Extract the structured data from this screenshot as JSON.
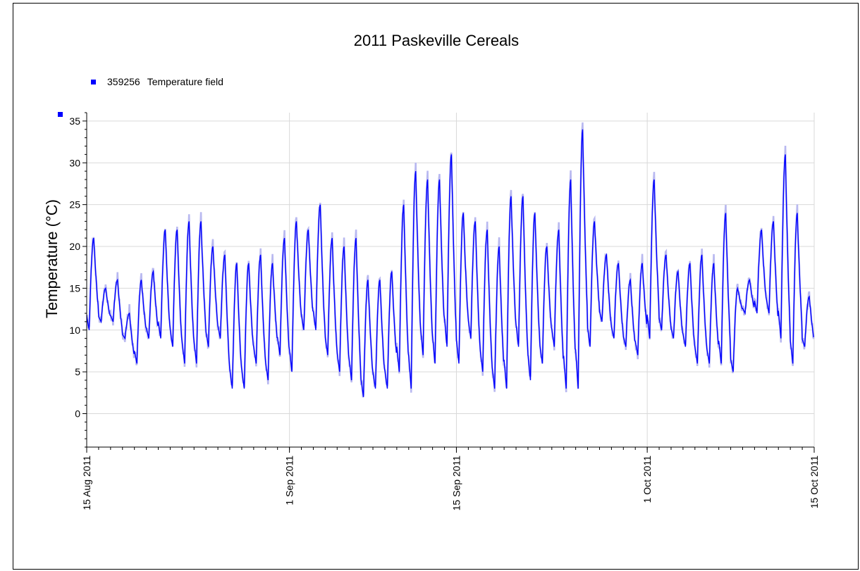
{
  "chart_data": {
    "type": "line",
    "title": "2011 Paskeville Cereals",
    "ylabel": "Temperature (°C)",
    "xlabel": "",
    "ylim": [
      -4,
      36
    ],
    "yticks": [
      0,
      5,
      10,
      15,
      20,
      25,
      30,
      35
    ],
    "xlim": [
      "2011-08-15",
      "2011-10-15"
    ],
    "xticks": [
      {
        "date": "2011-08-15",
        "label": "15 Aug 2011"
      },
      {
        "date": "2011-09-01",
        "label": "1 Sep 2011"
      },
      {
        "date": "2011-09-15",
        "label": "15 Sep 2011"
      },
      {
        "date": "2011-10-01",
        "label": "1 Oct 2011"
      },
      {
        "date": "2011-10-15",
        "label": "15 Oct 2011"
      }
    ],
    "grid": true,
    "legend_placement": "top-left",
    "series": [
      {
        "id": "359256",
        "name": "Temperature field",
        "color": "#0000ff",
        "envelope_color": "#b8b8f0",
        "daily_min": [
          10,
          11,
          11,
          9,
          6,
          9,
          9,
          8,
          6,
          6,
          8,
          9,
          3,
          3,
          6,
          4,
          7,
          5,
          10,
          10,
          7,
          5,
          4,
          2,
          3,
          3,
          5,
          3,
          7,
          6,
          8,
          6,
          9,
          5,
          3,
          3,
          8,
          4,
          6,
          8,
          3,
          3,
          8,
          11,
          9,
          8,
          7,
          9,
          10,
          9,
          8,
          6,
          6,
          6,
          5,
          12,
          12,
          12,
          9,
          6,
          8
        ],
        "daily_max": [
          21,
          15,
          16,
          12,
          16,
          17,
          22,
          22,
          23,
          23,
          20,
          19,
          18,
          18,
          19,
          18,
          21,
          23,
          22,
          25,
          21,
          20,
          21,
          16,
          16,
          17,
          25,
          29,
          28,
          28,
          31,
          24,
          23,
          22,
          20,
          26,
          26,
          24,
          20,
          22,
          28,
          34,
          23,
          19,
          18,
          16,
          18,
          28,
          19,
          17,
          18,
          19,
          18,
          24,
          15,
          16,
          22,
          23,
          31,
          24,
          14
        ],
        "peak_hour": [
          14,
          14,
          14,
          14,
          14,
          14,
          14,
          14,
          14,
          14,
          14,
          14,
          14,
          14,
          14,
          14,
          14,
          14,
          14,
          14,
          14,
          14,
          14,
          14,
          14,
          14,
          14,
          14,
          14,
          14,
          14,
          14,
          14,
          14,
          14,
          14,
          14,
          14,
          14,
          14,
          14,
          14,
          14,
          14,
          14,
          14,
          14,
          14,
          14,
          14,
          14,
          14,
          14,
          14,
          14,
          14,
          14,
          14,
          14,
          14,
          14
        ]
      }
    ]
  },
  "legend": {
    "marker_id": "359256",
    "label": "Temperature field"
  }
}
